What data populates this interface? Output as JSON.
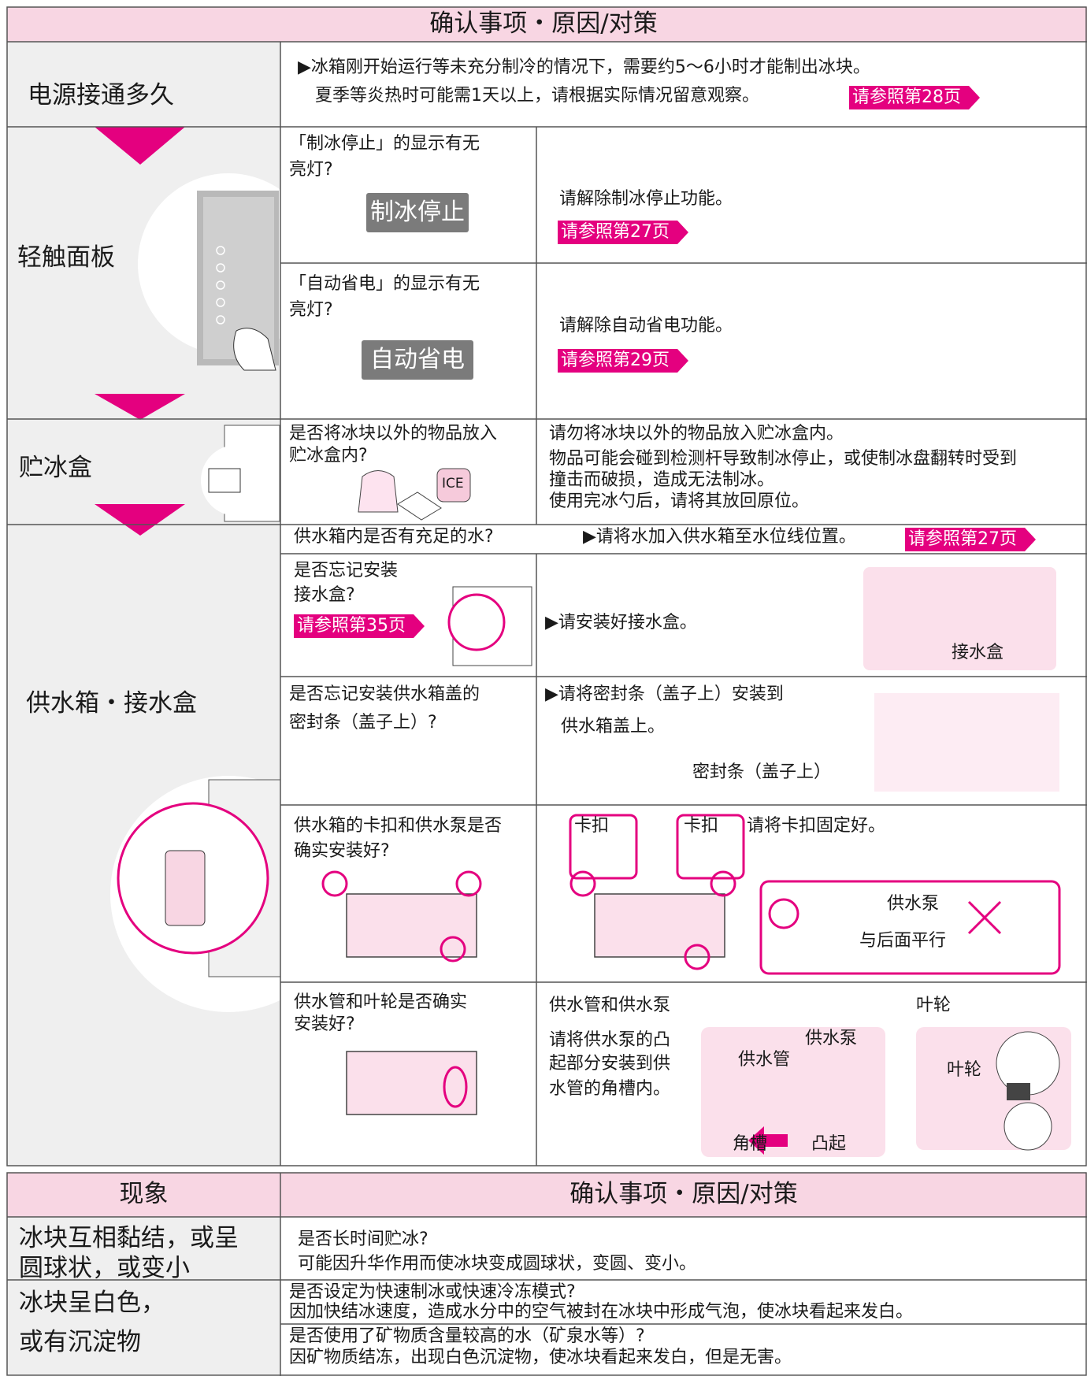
{
  "table1": {
    "header": "确认事项・原因/对策",
    "sections": [
      {
        "label": "电源接通多久",
        "lines": [
          "▶冰箱刚开始运行等未充分制冷的情况下，需要约5～6小时才能制出冰块。",
          "夏季等炎热时可能需1天以上，请根据实际情况留意观察。"
        ],
        "ref": "请参照第28页"
      },
      {
        "label": "轻触面板",
        "checks": [
          {
            "question": [
              "「制冰停止」的显示有无",
              "亮灯?"
            ],
            "badge": "制冰停止",
            "answer": "请解除制冰停止功能。",
            "ref": "请参照第27页"
          },
          {
            "question": [
              "「自动省电」的显示有无",
              "亮灯?"
            ],
            "badge": "自动省电",
            "answer": "请解除自动省电功能。",
            "ref": "请参照第29页"
          }
        ]
      },
      {
        "label": "贮冰盒",
        "question": [
          "是否将冰块以外的物品放入",
          "贮冰盒内?"
        ],
        "icon": "ICE",
        "answer": [
          "请勿将冰块以外的物品放入贮冰盒内。",
          "物品可能会碰到检测杆导致制冰停止，或使制冰盘翻转时受到",
          "撞击而破损，造成无法制冰。",
          "使用完冰勺后，请将其放回原位。"
        ]
      },
      {
        "label": "供水箱・接水盒",
        "checks": [
          {
            "question": [
              "供水箱内是否有充足的水?"
            ],
            "answer": [
              "▶请将水加入供水箱至水位线位置。"
            ],
            "ref": "请参照第27页"
          },
          {
            "question": [
              "是否忘记安装",
              "接水盒?"
            ],
            "ref": "请参照第35页",
            "answer": [
              "▶请安装好接水盒。"
            ],
            "callouts": [
              "接水盒"
            ]
          },
          {
            "question": [
              "是否忘记安装供水箱盖的",
              "密封条（盖子上）?"
            ],
            "answer": [
              "▶请将密封条（盖子上）安装到",
              "供水箱盖上。"
            ],
            "callouts": [
              "密封条（盖子上）"
            ]
          },
          {
            "question": [
              "供水箱的卡扣和供水泵是否",
              "确实安装好?"
            ],
            "answer": [
              "请将卡扣固定好。"
            ],
            "callouts": [
              "卡扣",
              "卡扣",
              "供水泵",
              "与后面平行"
            ]
          },
          {
            "question": [
              "供水管和叶轮是否确实",
              "安装好?"
            ],
            "titles": [
              "供水管和供水泵",
              "叶轮"
            ],
            "answer": [
              "请将供水泵的凸",
              "起部分安装到供",
              "水管的角槽内。"
            ],
            "callouts": [
              "供水泵",
              "供水管",
              "角槽",
              "凸起",
              "叶轮"
            ]
          }
        ]
      }
    ]
  },
  "table2": {
    "header": [
      "现象",
      "确认事项・原因/对策"
    ],
    "rows": [
      {
        "phenomenon": [
          "冰块互相黏结，或呈",
          "圆球状，或变小"
        ],
        "causes": [
          [
            "是否长时间贮冰?",
            "可能因升华作用而使冰块变成圆球状，变圆、变小。"
          ]
        ]
      },
      {
        "phenomenon": [
          "冰块呈白色，",
          "或有沉淀物"
        ],
        "causes": [
          [
            "是否设定为快速制冰或快速冷冻模式?",
            "因加快结冰速度，造成水分中的空气被封在冰块中形成气泡，使冰块看起来发白。"
          ],
          [
            "是否使用了矿物质含量较高的水（矿泉水等）?",
            "因矿物质结冻，出现白色沉淀物，使冰块看起来发白，但是无害。"
          ]
        ]
      }
    ]
  }
}
